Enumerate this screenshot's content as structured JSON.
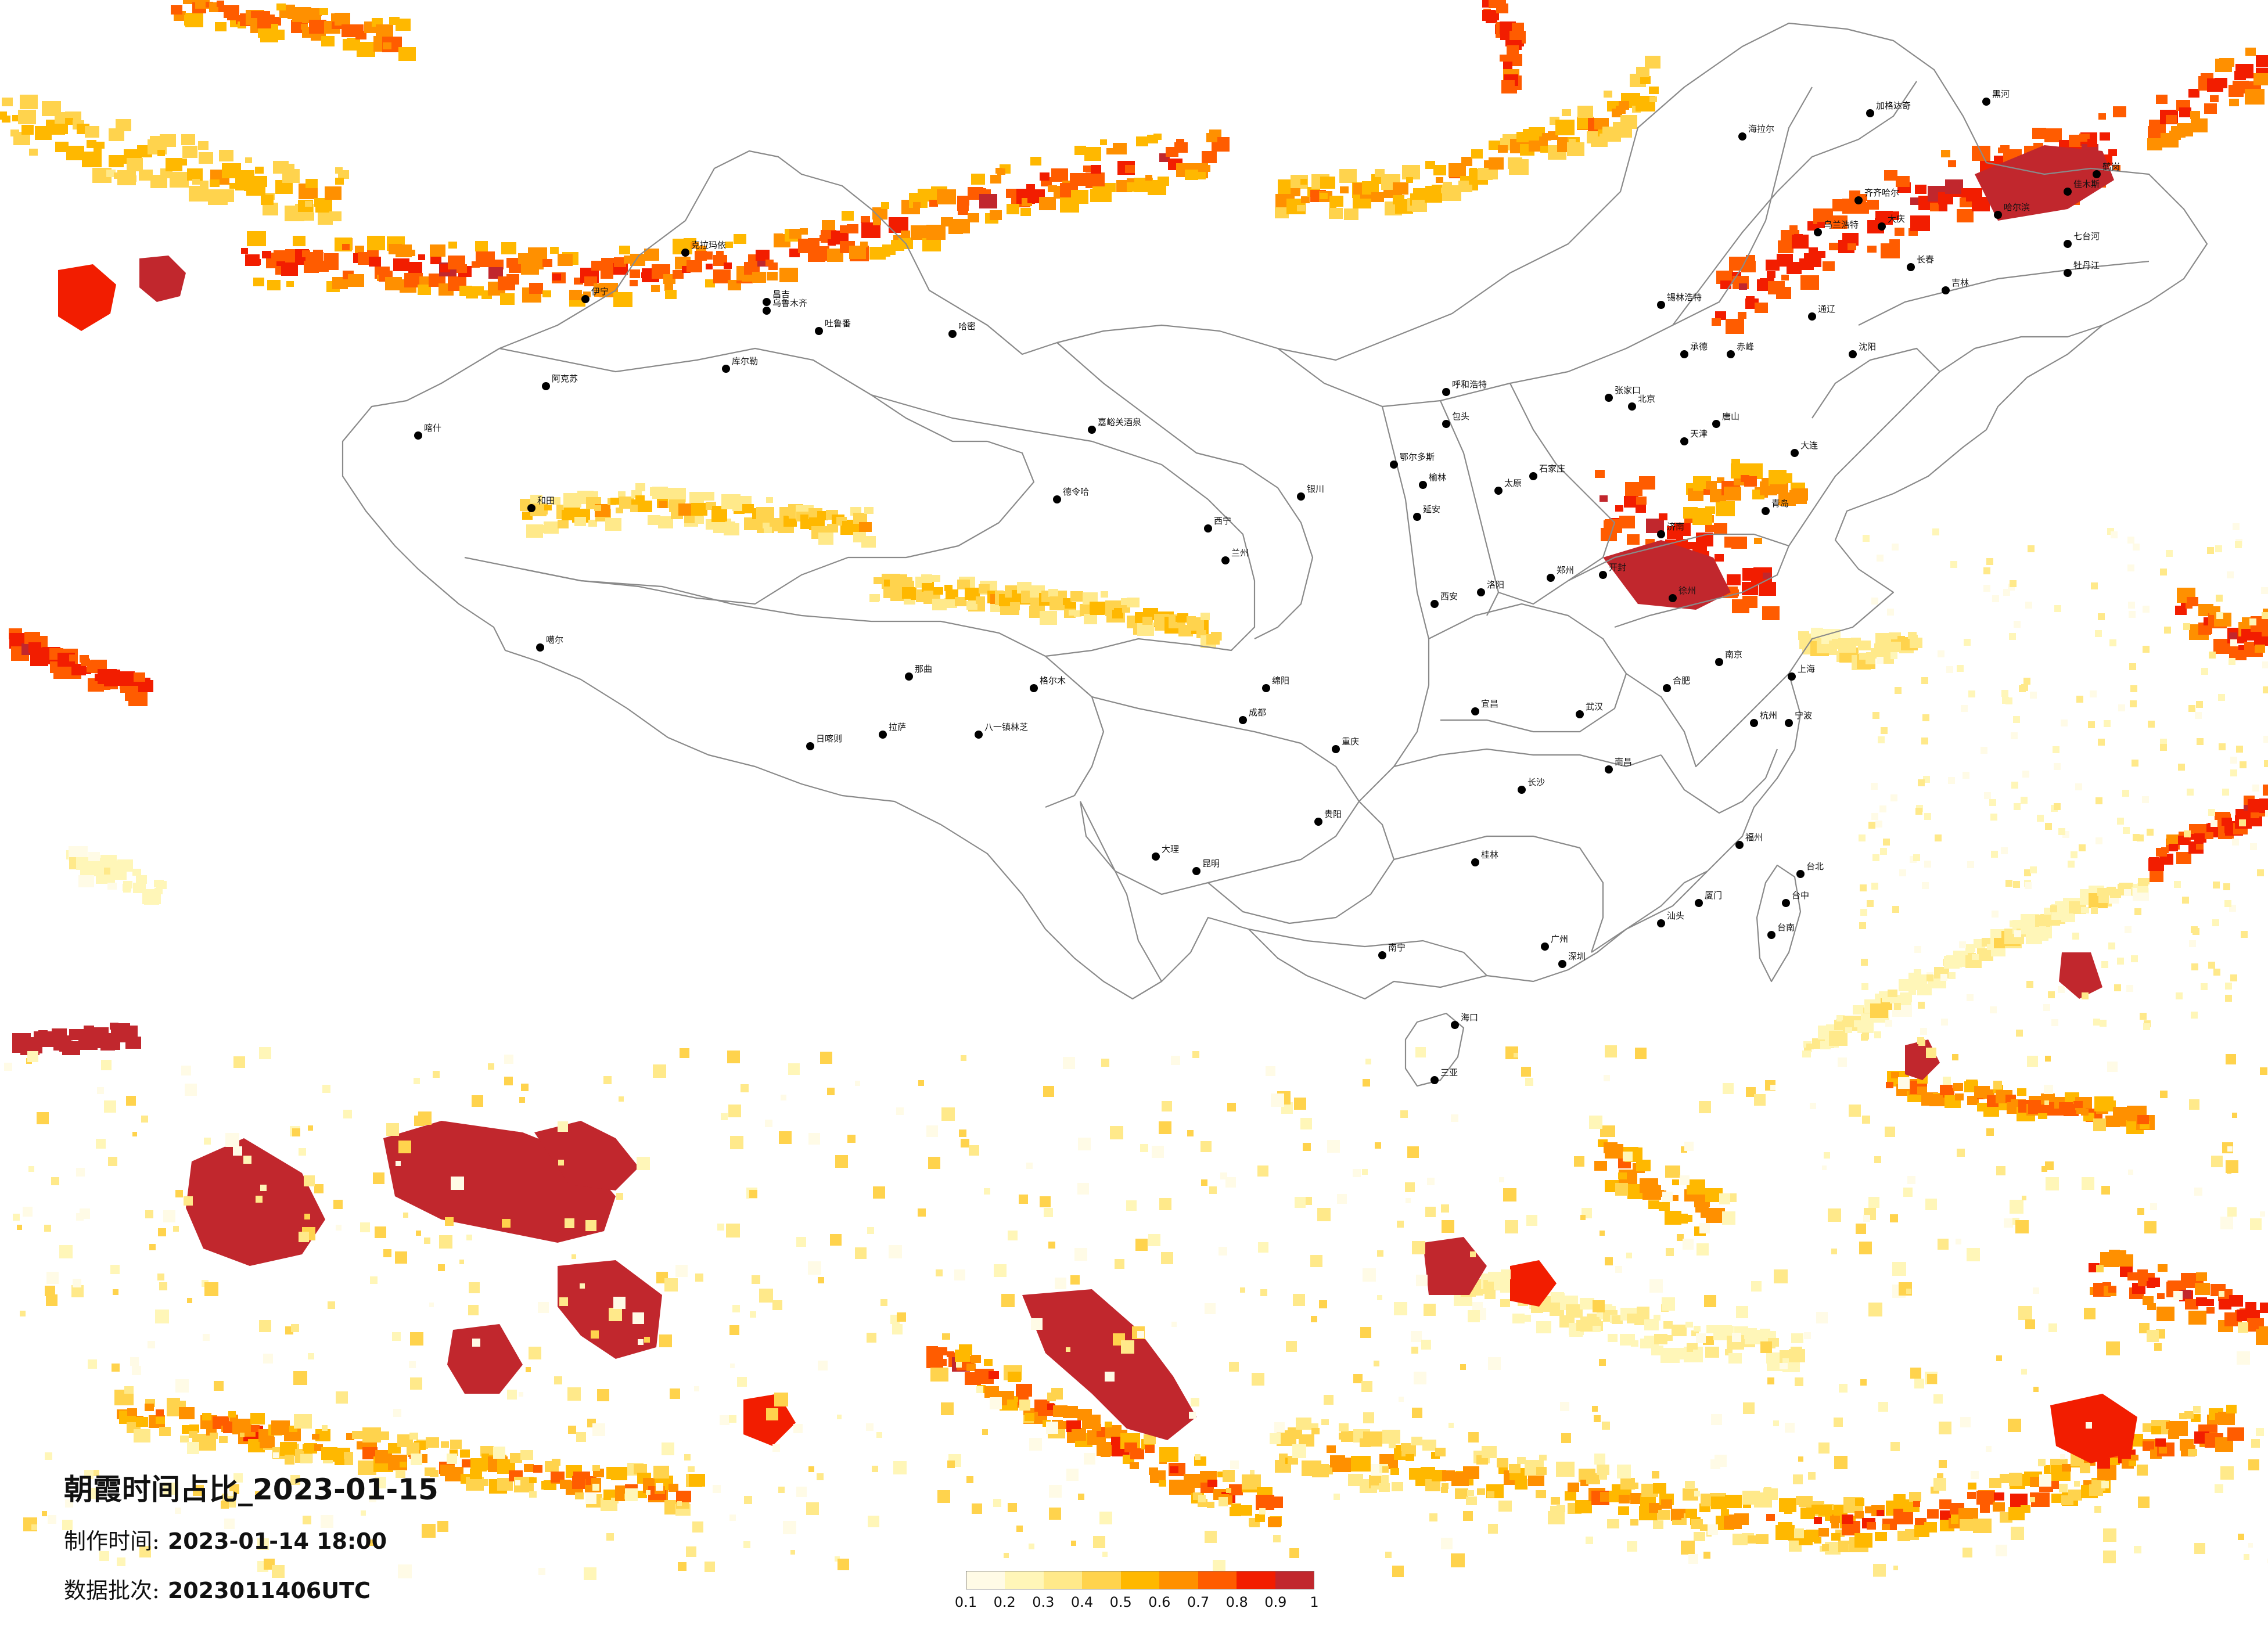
{
  "title": "朝霞时间占比_2023-01-15",
  "meta": {
    "made_label": "制作时间:",
    "made_value": "2023-01-14 18:00",
    "batch_label": "数据批次:",
    "batch_value": "2023011406UTC"
  },
  "legend": {
    "ticks": [
      "0.1",
      "0.2",
      "0.3",
      "0.4",
      "0.5",
      "0.6",
      "0.7",
      "0.8",
      "0.9",
      "1"
    ],
    "colors": [
      "#fffbe6",
      "#fff6b8",
      "#ffe98a",
      "#ffd34d",
      "#ffb800",
      "#ff9000",
      "#ff5c00",
      "#f21d00",
      "#c1272d"
    ]
  },
  "cities": [
    {
      "name": "伊宁"
    },
    {
      "name": "昌吉"
    },
    {
      "name": "乌鲁木齐"
    },
    {
      "name": "吐鲁番"
    },
    {
      "name": "哈密"
    },
    {
      "name": "库尔勒"
    },
    {
      "name": "阿克苏"
    },
    {
      "name": "喀什"
    },
    {
      "name": "和田"
    },
    {
      "name": "克拉玛依"
    },
    {
      "name": "嘉峪关酒泉"
    },
    {
      "name": "德令哈"
    },
    {
      "name": "格尔木"
    },
    {
      "name": "噶尔"
    },
    {
      "name": "拉萨"
    },
    {
      "name": "日喀则"
    },
    {
      "name": "八一镇林芝"
    },
    {
      "name": "那曲"
    },
    {
      "name": "西宁"
    },
    {
      "name": "兰州"
    },
    {
      "name": "银川"
    },
    {
      "name": "呼和浩特"
    },
    {
      "name": "包头"
    },
    {
      "name": "鄂尔多斯"
    },
    {
      "name": "榆林"
    },
    {
      "name": "延安"
    },
    {
      "name": "西安"
    },
    {
      "name": "太原"
    },
    {
      "name": "石家庄"
    },
    {
      "name": "北京"
    },
    {
      "name": "天津"
    },
    {
      "name": "唐山"
    },
    {
      "name": "张家口"
    },
    {
      "name": "承德"
    },
    {
      "name": "济南"
    },
    {
      "name": "青岛"
    },
    {
      "name": "郑州"
    },
    {
      "name": "开封"
    },
    {
      "name": "洛阳"
    },
    {
      "name": "徐州"
    },
    {
      "name": "合肥"
    },
    {
      "name": "南京"
    },
    {
      "name": "上海"
    },
    {
      "name": "杭州"
    },
    {
      "name": "宁波"
    },
    {
      "name": "福州"
    },
    {
      "name": "厦门"
    },
    {
      "name": "南昌"
    },
    {
      "name": "长沙"
    },
    {
      "name": "武汉"
    },
    {
      "name": "宜昌"
    },
    {
      "name": "重庆"
    },
    {
      "name": "成都"
    },
    {
      "name": "绵阳"
    },
    {
      "name": "贵阳"
    },
    {
      "name": "昆明"
    },
    {
      "name": "大理"
    },
    {
      "name": "南宁"
    },
    {
      "name": "桂林"
    },
    {
      "name": "广州"
    },
    {
      "name": "深圳"
    },
    {
      "name": "汕头"
    },
    {
      "name": "海口"
    },
    {
      "name": "三亚"
    },
    {
      "name": "台北"
    },
    {
      "name": "台中"
    },
    {
      "name": "台南"
    },
    {
      "name": "沈阳"
    },
    {
      "name": "大连"
    },
    {
      "name": "长春"
    },
    {
      "name": "吉林"
    },
    {
      "name": "哈尔滨"
    },
    {
      "name": "齐齐哈尔"
    },
    {
      "name": "大庆"
    },
    {
      "name": "佳木斯"
    },
    {
      "name": "牡丹江"
    },
    {
      "name": "黑河"
    },
    {
      "name": "加格达奇"
    },
    {
      "name": "海拉尔"
    },
    {
      "name": "锡林浩特"
    },
    {
      "name": "通辽"
    },
    {
      "name": "赤峰"
    },
    {
      "name": "乌兰浩特"
    },
    {
      "name": "七台河"
    },
    {
      "name": "鹤岗"
    }
  ]
}
